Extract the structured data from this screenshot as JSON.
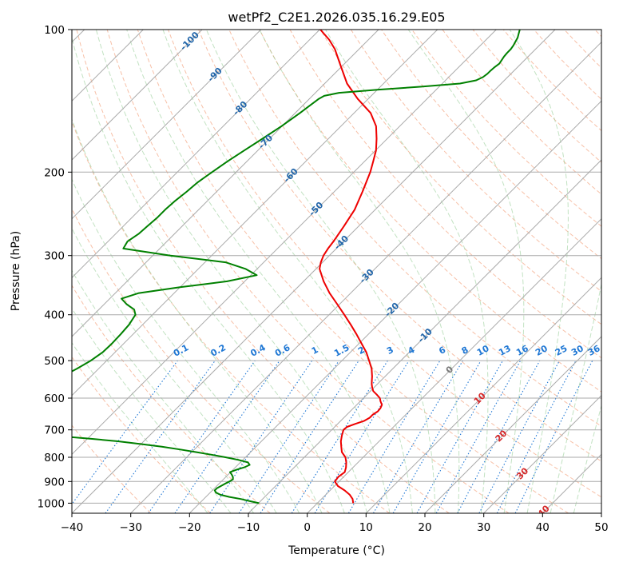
{
  "chart_data": {
    "type": "line",
    "diagram": "skew-t log-p",
    "title": "wetPf2_C2E1.2026.035.16.29.E05",
    "xlabel": "Temperature (°C)",
    "ylabel": "Pressure (hPa)",
    "xlim": [
      -40,
      50
    ],
    "ylim": [
      1050,
      100
    ],
    "y_scale": "log",
    "x_ticks": [
      -40,
      -30,
      -20,
      -10,
      0,
      10,
      20,
      30,
      40,
      50
    ],
    "y_ticks": [
      100,
      200,
      300,
      400,
      500,
      600,
      700,
      800,
      900,
      1000
    ],
    "x_tick_labels": [
      "−40",
      "−30",
      "−20",
      "−10",
      "0",
      "10",
      "20",
      "30",
      "40",
      "50"
    ],
    "y_tick_labels": [
      "100",
      "200",
      "300",
      "400",
      "500",
      "600",
      "700",
      "800",
      "900",
      "1000"
    ],
    "grid": true,
    "colors": {
      "temperature": "#ee0000",
      "dewpoint": "#008000",
      "isotherm": "#aaaaaa",
      "dry_adiabat": "#f4a582",
      "moist_adiabat": "#8fca8f",
      "mixing_ratio": "#1f77d4",
      "isotherm_label_neg": "#2266aa",
      "isotherm_label_pos": "#d62728"
    },
    "series": [
      {
        "key": "temperature",
        "p": [
          1000,
          980,
          960,
          940,
          920,
          900,
          880,
          860,
          840,
          820,
          800,
          780,
          760,
          740,
          720,
          700,
          690,
          680,
          670,
          660,
          650,
          640,
          630,
          620,
          610,
          600,
          590,
          580,
          570,
          560,
          550,
          540,
          520,
          500,
          480,
          460,
          440,
          420,
          400,
          380,
          360,
          340,
          320,
          310,
          300,
          290,
          280,
          260,
          240,
          220,
          200,
          190,
          180,
          170,
          160,
          150,
          140,
          130,
          120,
          110,
          105,
          100
        ],
        "t": [
          6.1,
          5.3,
          4.1,
          2.5,
          0.6,
          -0.7,
          -0.9,
          -0.6,
          -1.2,
          -2.0,
          -3.0,
          -4.5,
          -5.5,
          -6.5,
          -7.3,
          -8.0,
          -7.9,
          -7.0,
          -6.0,
          -5.6,
          -5.6,
          -5.3,
          -5.4,
          -5.7,
          -6.5,
          -7.2,
          -8.3,
          -9.5,
          -10.3,
          -11.0,
          -11.6,
          -12.2,
          -13.6,
          -15.4,
          -17.3,
          -19.6,
          -22.0,
          -24.6,
          -27.4,
          -30.4,
          -33.6,
          -36.6,
          -39.4,
          -40.3,
          -41.0,
          -41.4,
          -41.7,
          -42.5,
          -43.5,
          -45.2,
          -47.2,
          -48.5,
          -49.9,
          -51.8,
          -54.0,
          -57.2,
          -61.8,
          -66.2,
          -70.0,
          -74.1,
          -76.7,
          -79.9
        ]
      },
      {
        "key": "dewpoint",
        "p": [
          1000,
          990,
          980,
          970,
          960,
          950,
          940,
          930,
          920,
          910,
          900,
          890,
          880,
          870,
          860,
          850,
          840,
          830,
          820,
          810,
          800,
          790,
          780,
          770,
          760,
          750,
          740,
          730,
          720,
          710,
          700,
          690,
          680,
          670,
          660,
          650,
          640,
          620,
          600,
          580,
          560,
          540,
          520,
          500,
          480,
          460,
          440,
          420,
          400,
          390,
          380,
          370,
          360,
          350,
          340,
          330,
          320,
          310,
          300,
          290,
          280,
          270,
          260,
          250,
          240,
          230,
          220,
          210,
          200,
          190,
          180,
          170,
          160,
          150,
          145,
          140,
          138,
          136,
          134,
          132,
          130,
          128,
          126,
          124,
          122,
          120,
          118,
          116,
          114,
          112,
          110,
          108,
          106,
          104,
          102,
          100
        ],
        "td": [
          -9.9,
          -11.8,
          -13.7,
          -16.0,
          -17.9,
          -19.0,
          -19.6,
          -19.6,
          -19.3,
          -19.0,
          -18.6,
          -18.4,
          -18.8,
          -19.4,
          -20.1,
          -19.4,
          -18.5,
          -18.0,
          -18.7,
          -20.8,
          -23.4,
          -26.2,
          -29.3,
          -32.5,
          -36.0,
          -40.1,
          -44.4,
          -50.0,
          -56.6,
          -65.5,
          -73.0,
          -77.6,
          -77.9,
          -76.7,
          -75.5,
          -74.0,
          -72.3,
          -70.8,
          -69.4,
          -67.8,
          -66.3,
          -64.9,
          -63.7,
          -62.7,
          -62.1,
          -62.0,
          -62.1,
          -62.3,
          -62.9,
          -64.0,
          -66.2,
          -68.0,
          -66.0,
          -60.0,
          -53.0,
          -49.0,
          -52.0,
          -56.5,
          -67.0,
          -76.2,
          -76.7,
          -76.1,
          -75.9,
          -75.7,
          -75.7,
          -75.5,
          -75.1,
          -74.8,
          -74.1,
          -73.3,
          -72.3,
          -71.2,
          -70.1,
          -69.2,
          -68.8,
          -68.4,
          -68.0,
          -66.0,
          -60.0,
          -53.0,
          -47.0,
          -44.8,
          -44.2,
          -44.0,
          -44.0,
          -43.9,
          -43.7,
          -43.9,
          -44.1,
          -44.2,
          -44.2,
          -44.4,
          -44.7,
          -45.0,
          -45.5,
          -46.0
        ]
      }
    ],
    "isotherm_labels": [
      "-100",
      "-90",
      "-80",
      "-70",
      "-60",
      "-50",
      "-40",
      "-30",
      "-20",
      "-10",
      "0",
      "10",
      "20",
      "30",
      "40"
    ],
    "isotherm_label_values": [
      -100,
      -90,
      -80,
      -70,
      -60,
      -50,
      -40,
      -30,
      -20,
      -10,
      0,
      10,
      20,
      30,
      40
    ],
    "mixing_ratio_labels": [
      "0.1",
      "0.2",
      "0.4",
      "0.6",
      "1",
      "1.5",
      "2",
      "3",
      "4",
      "6",
      "8",
      "10",
      "13",
      "16",
      "20",
      "25",
      "30",
      "36"
    ],
    "mixing_ratio_values": [
      0.1,
      0.2,
      0.4,
      0.6,
      1,
      1.5,
      2,
      3,
      4,
      6,
      8,
      10,
      13,
      16,
      20,
      25,
      30,
      36
    ]
  }
}
